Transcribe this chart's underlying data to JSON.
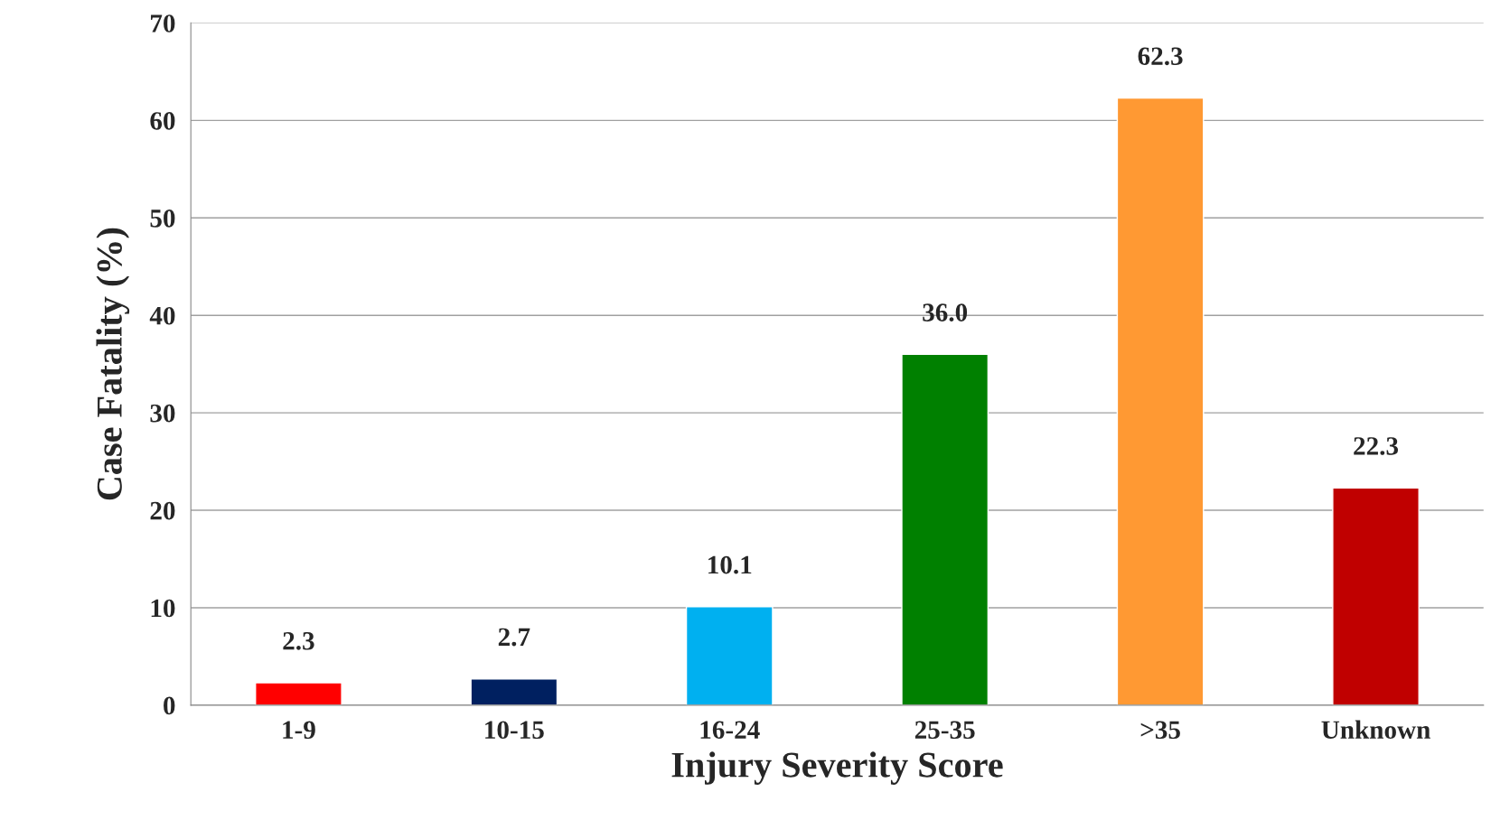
{
  "chart_data": {
    "type": "bar",
    "xlabel": "Injury Severity Score",
    "ylabel": "Case Fatality (%)",
    "categories": [
      "1-9",
      "10-15",
      "16-24",
      "25-35",
      ">35",
      "Unknown"
    ],
    "values": [
      2.3,
      2.7,
      10.1,
      36.0,
      62.3,
      22.3
    ],
    "value_labels": [
      "2.3",
      "2.7",
      "10.1",
      "36.0",
      "62.3",
      "22.3"
    ],
    "colors": [
      "#ff0000",
      "#002060",
      "#00b0f0",
      "#008000",
      "#ff9933",
      "#c00000"
    ],
    "ylim": [
      0,
      70
    ],
    "yticks": [
      0,
      10,
      20,
      30,
      40,
      50,
      60,
      70
    ],
    "grid": "y"
  }
}
